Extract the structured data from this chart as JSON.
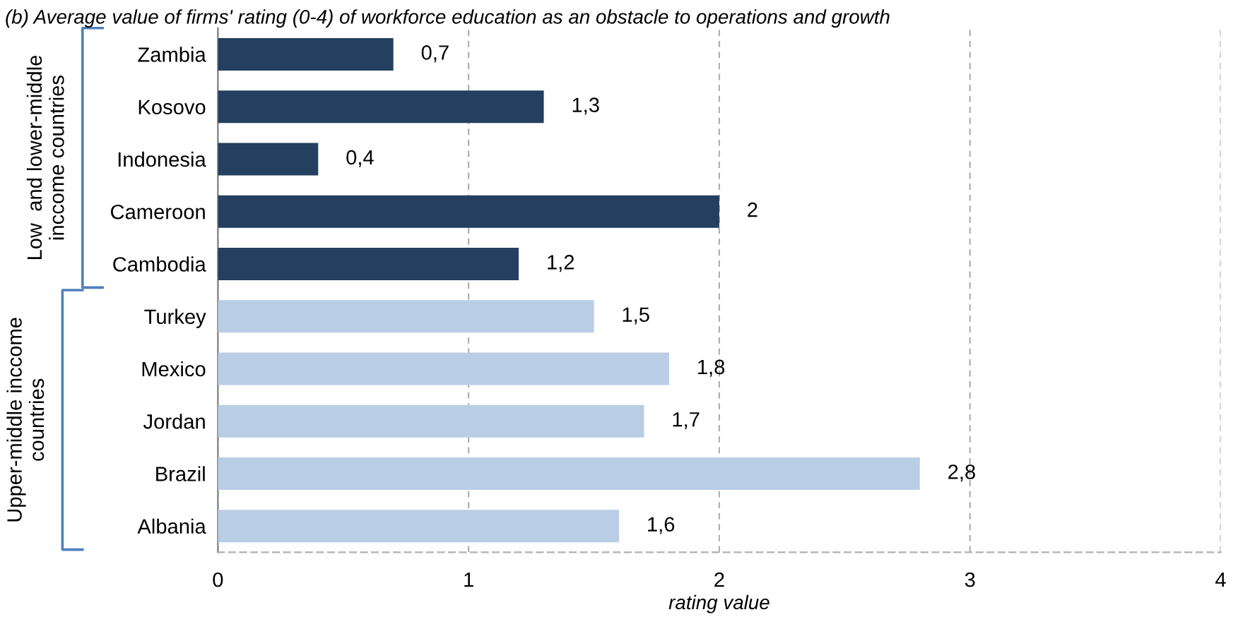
{
  "chart_data": {
    "type": "bar",
    "orientation": "horizontal",
    "title": "(b) Average value of firms' rating (0-4) of workforce education as an obstacle to operations and growth",
    "xlabel": "rating value",
    "categories": [
      "Zambia",
      "Kosovo",
      "Indonesia",
      "Cameroon",
      "Cambodia",
      "Turkey",
      "Mexico",
      "Jordan",
      "Brazil",
      "Albania"
    ],
    "values": [
      0.7,
      1.3,
      0.4,
      2,
      1.2,
      1.5,
      1.8,
      1.7,
      2.8,
      1.6
    ],
    "value_labels": [
      "0,7",
      "1,3",
      "0,4",
      "2",
      "1,2",
      "1,5",
      "1,8",
      "1,7",
      "2,8",
      "1,6"
    ],
    "colors": [
      "#243f60",
      "#243f60",
      "#243f60",
      "#243f60",
      "#243f60",
      "#b9cde5",
      "#b9cde5",
      "#b9cde5",
      "#b9cde5",
      "#b9cde5"
    ],
    "xlim": [
      0,
      4
    ],
    "xticks": [
      0,
      1,
      2,
      3,
      4
    ],
    "grid": "x",
    "annotations": [
      "Low  and lower-middle\ninccome countries",
      "Upper-middle inccome\ncountries"
    ]
  }
}
